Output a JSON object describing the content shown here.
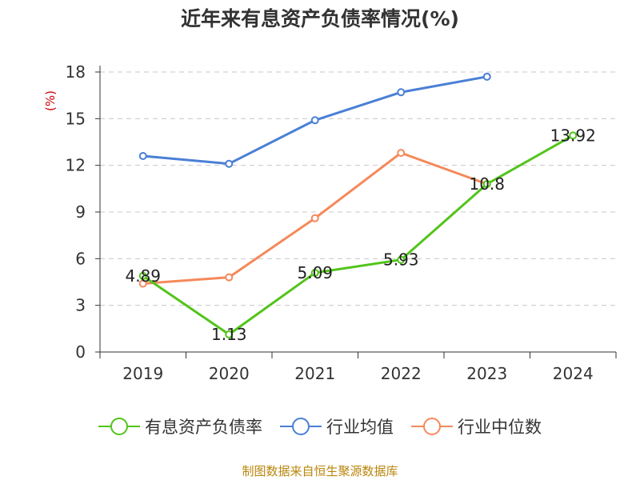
{
  "chart_data": {
    "type": "line",
    "title": "近年来有息资产负债率情况(%)",
    "ylabel": "(%)",
    "categories": [
      "2019",
      "2020",
      "2021",
      "2022",
      "2023",
      "2024"
    ],
    "yticks": [
      "0",
      "3",
      "6",
      "9",
      "12",
      "15",
      "18"
    ],
    "ylim": [
      0,
      18
    ],
    "grid": true,
    "legend_position": "bottom",
    "series": [
      {
        "name": "有息资产负债率",
        "color": "#52c41a",
        "values": [
          4.89,
          1.13,
          5.09,
          5.93,
          10.8,
          13.92
        ],
        "labels": [
          "4.89",
          "1.13",
          "5.09",
          "5.93",
          "10.8",
          "13.92"
        ]
      },
      {
        "name": "行业均值",
        "color": "#4a7fd6",
        "values": [
          12.6,
          12.1,
          14.9,
          16.7,
          17.7,
          null
        ]
      },
      {
        "name": "行业中位数",
        "color": "#f5895a",
        "values": [
          4.4,
          4.8,
          8.6,
          12.8,
          10.8,
          null
        ]
      }
    ]
  },
  "source": "制图数据来自恒生聚源数据库"
}
